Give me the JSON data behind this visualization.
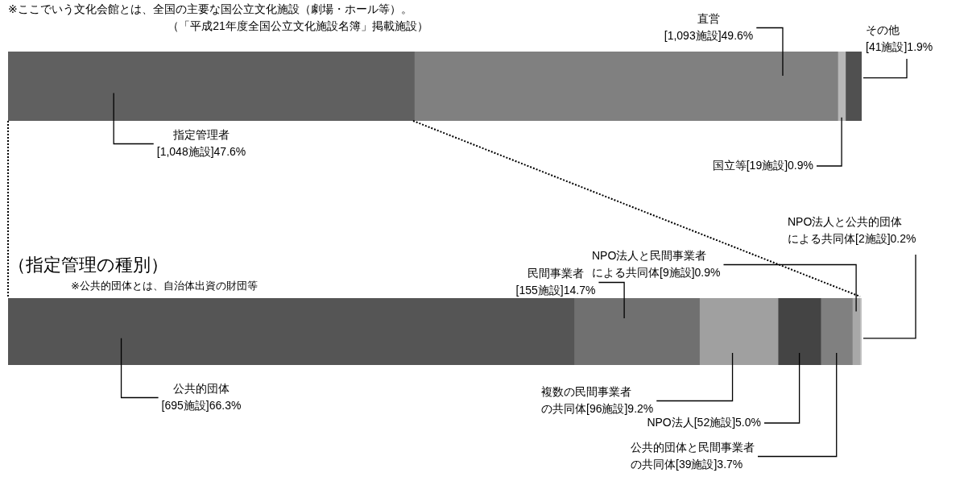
{
  "chart_data": [
    {
      "type": "bar",
      "orientation": "horizontal",
      "stacked": true,
      "categories": [
        null
      ],
      "xlim": [
        0,
        100
      ],
      "tick_labels": false,
      "grid": false,
      "legend": false,
      "annotations": [
        "※ここでいう文化会館とは、全国の主要な国公立文化施設（劇場・ホール等）。",
        "（「平成21年度全国公立文化施設名簿」掲載施設）"
      ],
      "series": [
        {
          "name": "指定管理者",
          "color": "#606060",
          "values": [
            47.6
          ],
          "value_labels": [
            "[1,048施設]47.6%"
          ]
        },
        {
          "name": "直営",
          "color": "#808080",
          "values": [
            49.6
          ],
          "value_labels": [
            "[1,093施設]49.6%"
          ]
        },
        {
          "name": "国立等",
          "color": "#b8b8b8",
          "values": [
            0.9
          ],
          "value_labels": [
            "[19施設]0.9%"
          ]
        },
        {
          "name": "その他",
          "color": "#505050",
          "values": [
            1.9
          ],
          "value_labels": [
            "[41施設]1.9%"
          ]
        }
      ]
    },
    {
      "type": "bar",
      "orientation": "horizontal",
      "stacked": true,
      "categories": [
        null
      ],
      "xlim": [
        0,
        100
      ],
      "tick_labels": false,
      "grid": false,
      "legend": false,
      "title": "（指定管理の種別）",
      "subtitle": "※公共的団体とは、自治体出資の財団等",
      "series": [
        {
          "name": "公共的団体",
          "color": "#555555",
          "values": [
            66.3
          ],
          "value_labels": [
            "[695施設]66.3%"
          ]
        },
        {
          "name": "民間事業者",
          "color": "#707070",
          "values": [
            14.7
          ],
          "value_labels": [
            "[155施設]14.7%"
          ]
        },
        {
          "name": "複数の民間事業者の共同体",
          "color": "#a0a0a0",
          "values": [
            9.2
          ],
          "value_labels": [
            "[96施設]9.2%"
          ]
        },
        {
          "name": "NPO法人",
          "color": "#444444",
          "values": [
            5.0
          ],
          "value_labels": [
            "[52施設]5.0%"
          ]
        },
        {
          "name": "公共的団体と民間事業者の共同体",
          "color": "#808080",
          "values": [
            3.7
          ],
          "value_labels": [
            "[39施設]3.7%"
          ]
        },
        {
          "name": "NPO法人と民間事業者による共同体",
          "color": "#a8a8a8",
          "values": [
            0.9
          ],
          "value_labels": [
            "[9施設]0.9%"
          ]
        },
        {
          "name": "NPO法人と公共的団体による共同体",
          "color": "#c4c4c4",
          "values": [
            0.2
          ],
          "value_labels": [
            "[2施設]0.2%"
          ]
        }
      ]
    }
  ]
}
